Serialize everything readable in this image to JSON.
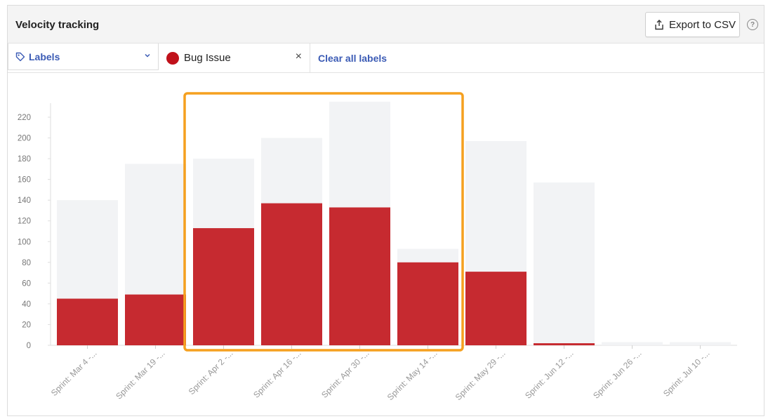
{
  "header": {
    "title": "Velocity tracking",
    "export_label": "Export to CSV",
    "help_glyph": "?"
  },
  "filters": {
    "labels_dropdown": "Labels",
    "selected_label": "Bug Issue",
    "selected_label_color": "#c0111a",
    "remove_glyph": "×",
    "clear_all": "Clear all labels"
  },
  "colors": {
    "bug_bar": "#c62a30",
    "total_bar": "#f2f3f5",
    "highlight": "#f5a01f",
    "accent_link": "#3b5bb5"
  },
  "chart_data": {
    "type": "bar",
    "ylim": [
      0,
      230
    ],
    "yticks": [
      0,
      20,
      40,
      60,
      80,
      100,
      120,
      140,
      160,
      180,
      200,
      220
    ],
    "categories": [
      "Sprint: Mar 4 -...",
      "Sprint: Mar 19 -...",
      "Sprint: Apr 2 -...",
      "Sprint: Apr 16 -...",
      "Sprint: Apr 30 -...",
      "Sprint: May 14 -...",
      "Sprint: May 29 -...",
      "Sprint: Jun 12 -...",
      "Sprint: Jun 26 -...",
      "Sprint: Jul 10 -..."
    ],
    "series": [
      {
        "values": [
          140,
          175,
          180,
          200,
          235,
          93,
          197,
          157,
          3,
          3
        ]
      },
      {
        "values": [
          45,
          49,
          113,
          137,
          133,
          80,
          71,
          2,
          0,
          0
        ]
      }
    ],
    "highlighted_categories": [
      2,
      5
    ]
  }
}
